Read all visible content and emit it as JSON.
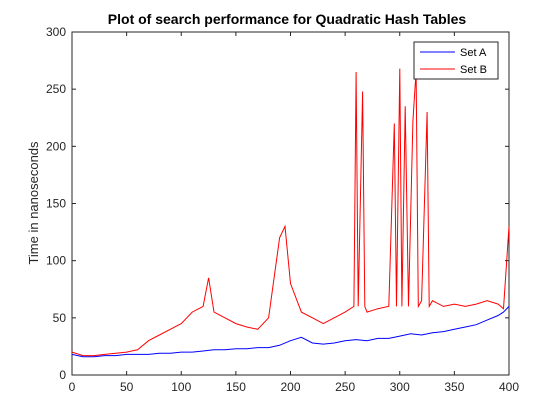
{
  "chart_data": {
    "type": "line",
    "title": "Plot of search performance for Quadratic Hash Tables",
    "xlabel": "",
    "ylabel": "Time in nanoseconds",
    "xlim": [
      0,
      400
    ],
    "ylim": [
      0,
      300
    ],
    "xticks": [
      0,
      50,
      100,
      150,
      200,
      250,
      300,
      350,
      400
    ],
    "yticks": [
      0,
      50,
      100,
      150,
      200,
      250,
      300
    ],
    "grid": false,
    "legend_position": "top-right",
    "series": [
      {
        "name": "Set A",
        "color": "#0000ff",
        "x": [
          0,
          10,
          20,
          30,
          40,
          50,
          60,
          70,
          80,
          90,
          100,
          110,
          120,
          130,
          140,
          150,
          160,
          170,
          180,
          190,
          200,
          210,
          220,
          230,
          240,
          250,
          260,
          270,
          280,
          290,
          300,
          310,
          320,
          330,
          340,
          350,
          360,
          370,
          380,
          390,
          395,
          400
        ],
        "y": [
          18,
          16,
          16,
          17,
          17,
          18,
          18,
          18,
          19,
          19,
          20,
          20,
          21,
          22,
          22,
          23,
          23,
          24,
          24,
          26,
          30,
          33,
          28,
          27,
          28,
          30,
          31,
          30,
          32,
          32,
          34,
          36,
          35,
          37,
          38,
          40,
          42,
          44,
          48,
          52,
          55,
          60
        ]
      },
      {
        "name": "Set B",
        "color": "#ff0000",
        "x": [
          0,
          10,
          20,
          30,
          40,
          50,
          60,
          70,
          80,
          90,
          100,
          110,
          120,
          125,
          130,
          140,
          150,
          160,
          170,
          180,
          190,
          195,
          200,
          210,
          220,
          230,
          240,
          250,
          258,
          260,
          262,
          266,
          268,
          270,
          280,
          290,
          295,
          297,
          300,
          302,
          305,
          308,
          312,
          315,
          317,
          320,
          325,
          327,
          330,
          340,
          350,
          360,
          370,
          380,
          390,
          395,
          400
        ],
        "y": [
          20,
          17,
          17,
          18,
          19,
          20,
          22,
          30,
          35,
          40,
          45,
          55,
          60,
          85,
          55,
          50,
          45,
          42,
          40,
          50,
          120,
          130,
          80,
          55,
          50,
          45,
          50,
          55,
          60,
          265,
          60,
          248,
          60,
          55,
          58,
          60,
          220,
          60,
          268,
          60,
          235,
          60,
          222,
          266,
          60,
          65,
          230,
          60,
          65,
          60,
          62,
          60,
          62,
          65,
          62,
          58,
          130
        ]
      }
    ]
  }
}
